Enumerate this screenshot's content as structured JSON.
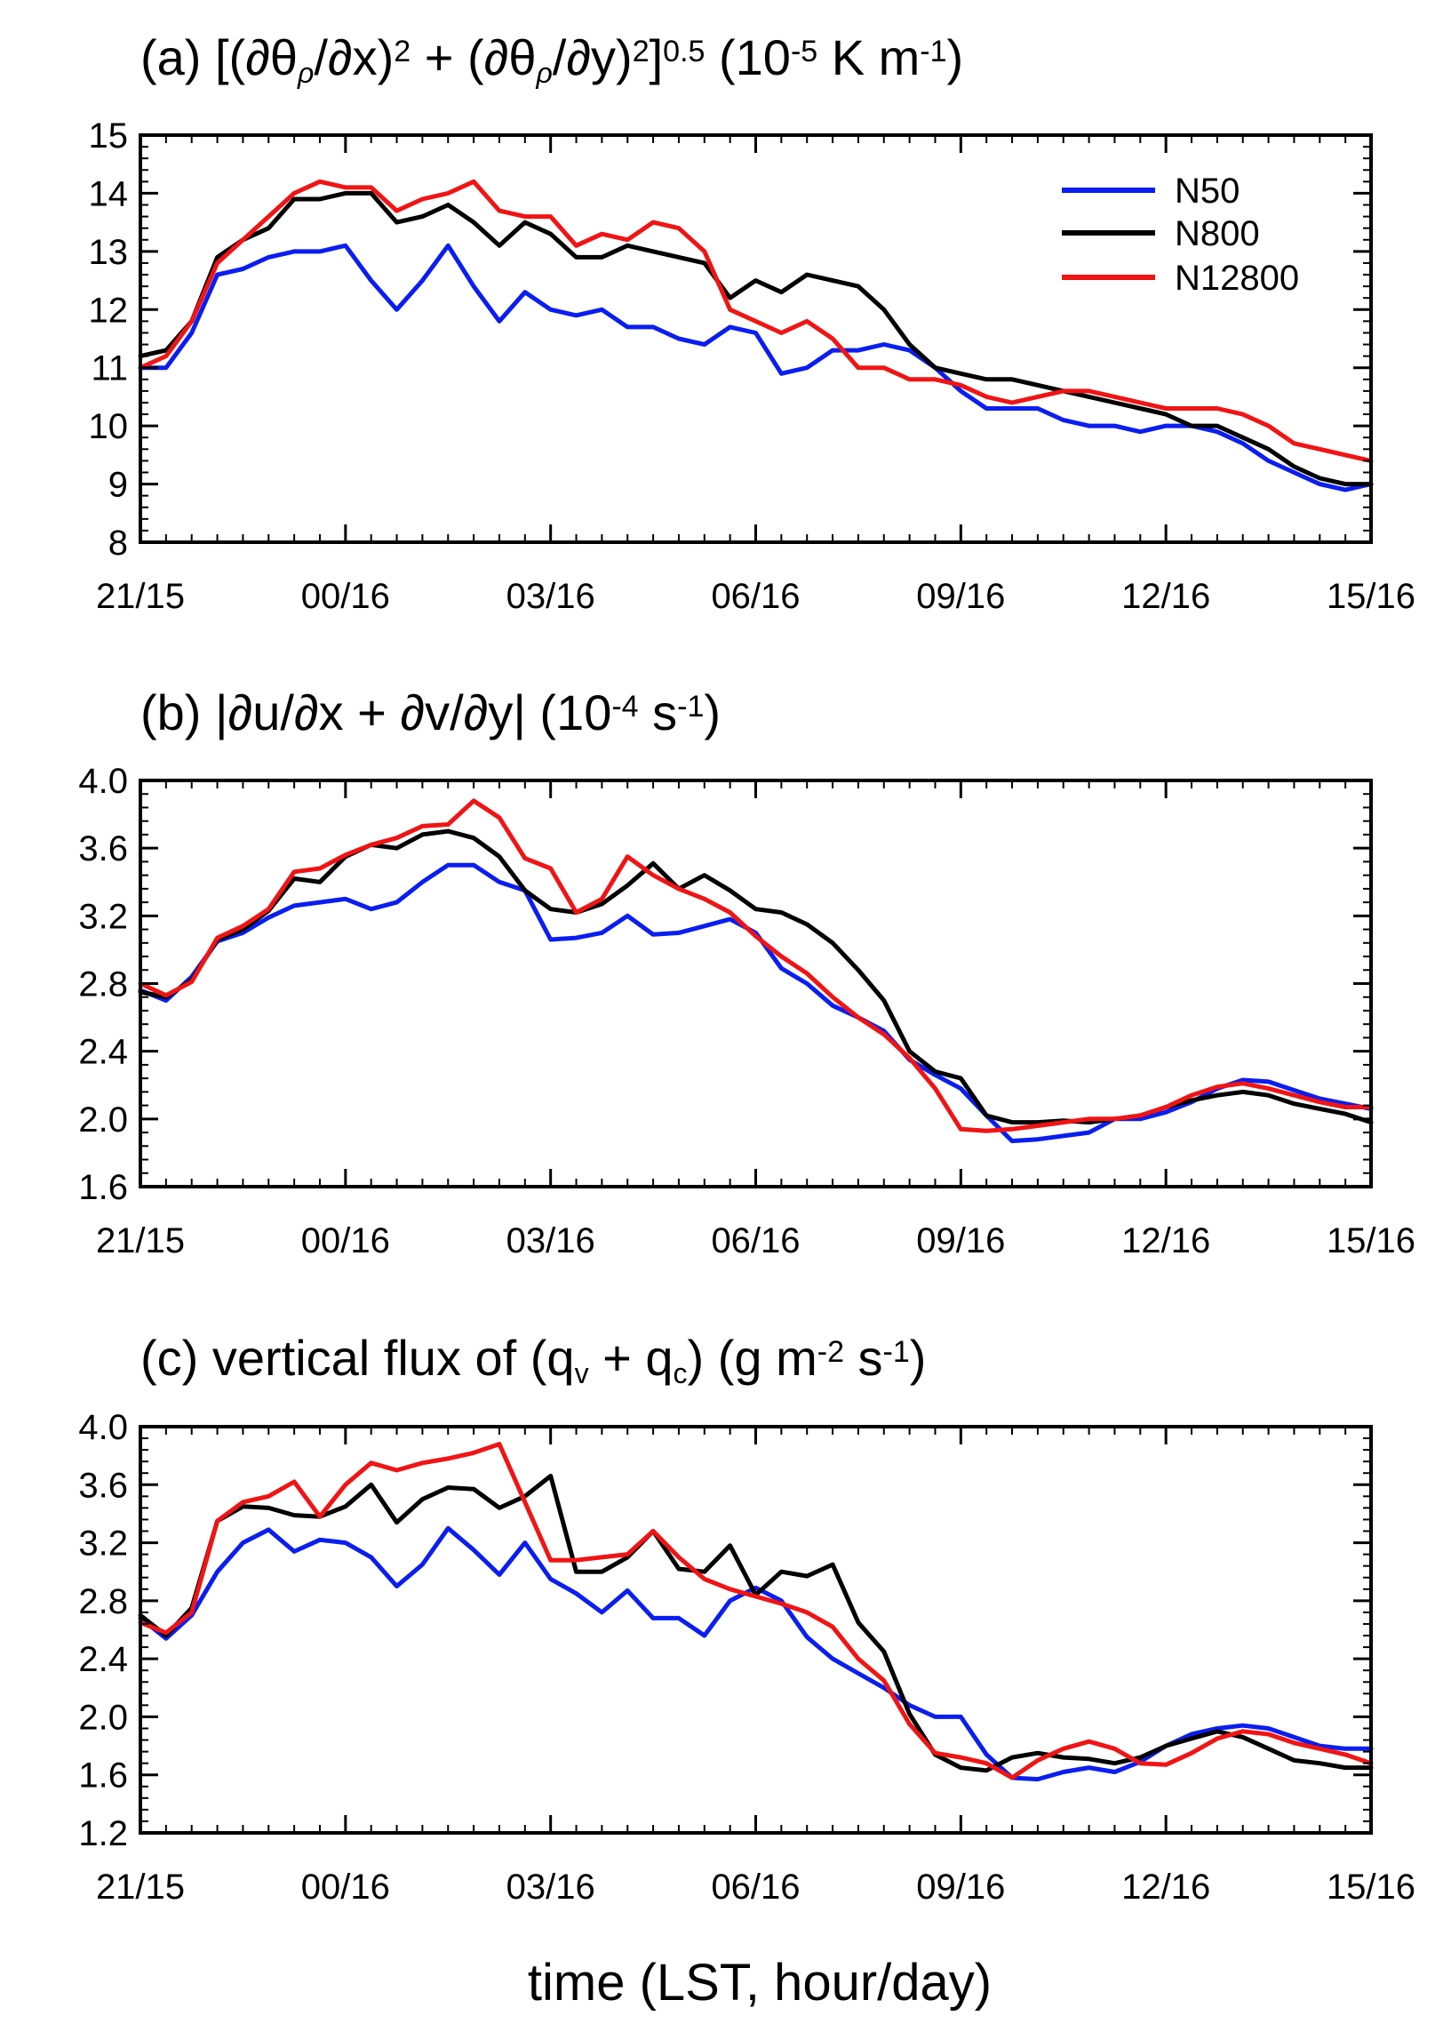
{
  "figure": {
    "xlabel": "time (LST, hour/day)"
  },
  "legend": [
    {
      "name": "N50",
      "color": "#0a1ef0"
    },
    {
      "name": "N800",
      "color": "#000000"
    },
    {
      "name": "N12800",
      "color": "#f01414"
    }
  ],
  "chart_data": [
    {
      "type": "line",
      "title": "(a) [(∂θρ/∂x)² + (∂θρ/∂y)²]^0.5 (10⁻⁵ K m⁻¹)",
      "title_parts": {
        "prefix": "(a) [(∂θ",
        "sub1": "ρ",
        "mid1": "/∂x)",
        "sup1": "2",
        "mid2": " + (∂θ",
        "sub2": "ρ",
        "mid3": "/∂y)",
        "sup2": "2",
        "mid4": "]",
        "sup3": "0.5",
        "mid5": " (10",
        "sup4": "-5",
        "mid6": " K m",
        "sup5": "-1",
        "suffix": ")"
      },
      "xlabel": "",
      "ylabel": "",
      "xlim": [
        0,
        24
      ],
      "ylim": [
        8,
        15
      ],
      "x_tick_values": [
        0,
        4,
        8,
        12,
        16,
        20,
        24
      ],
      "x_tick_labels": [
        "21/15",
        "00/16",
        "03/16",
        "06/16",
        "09/16",
        "12/16",
        "15/16"
      ],
      "y_tick_values": [
        8,
        9,
        10,
        11,
        12,
        13,
        14,
        15
      ],
      "y_tick_labels": [
        "8",
        "9",
        "10",
        "11",
        "12",
        "13",
        "14",
        "15"
      ],
      "series": [
        {
          "name": "N50",
          "x": [
            0,
            0.5,
            1,
            1.5,
            2,
            2.5,
            3,
            3.5,
            4,
            4.5,
            5,
            5.5,
            6,
            6.5,
            7,
            7.5,
            8,
            8.5,
            9,
            9.5,
            10,
            10.5,
            11,
            11.5,
            12,
            12.5,
            13,
            13.5,
            14,
            14.5,
            15,
            15.5,
            16,
            16.5,
            17,
            17.5,
            18,
            18.5,
            19,
            19.5,
            20,
            20.5,
            21,
            21.5,
            22,
            22.5,
            23,
            23.5,
            24
          ],
          "values": [
            11.0,
            11.0,
            11.6,
            12.6,
            12.7,
            12.9,
            13.0,
            13.0,
            13.1,
            12.5,
            12.0,
            12.5,
            13.1,
            12.4,
            11.8,
            12.3,
            12.0,
            11.9,
            12.0,
            11.7,
            11.7,
            11.5,
            11.4,
            11.7,
            11.6,
            10.9,
            11.0,
            11.3,
            11.3,
            11.4,
            11.3,
            11.0,
            10.6,
            10.3,
            10.3,
            10.3,
            10.1,
            10.0,
            10.0,
            9.9,
            10.0,
            10.0,
            9.9,
            9.7,
            9.4,
            9.2,
            9.0,
            8.9,
            9.0
          ]
        },
        {
          "name": "N800",
          "x": [
            0,
            0.5,
            1,
            1.5,
            2,
            2.5,
            3,
            3.5,
            4,
            4.5,
            5,
            5.5,
            6,
            6.5,
            7,
            7.5,
            8,
            8.5,
            9,
            9.5,
            10,
            10.5,
            11,
            11.5,
            12,
            12.5,
            13,
            13.5,
            14,
            14.5,
            15,
            15.5,
            16,
            16.5,
            17,
            17.5,
            18,
            18.5,
            19,
            19.5,
            20,
            20.5,
            21,
            21.5,
            22,
            22.5,
            23,
            23.5,
            24
          ],
          "values": [
            11.2,
            11.3,
            11.8,
            12.9,
            13.2,
            13.4,
            13.9,
            13.9,
            14.0,
            14.0,
            13.5,
            13.6,
            13.8,
            13.5,
            13.1,
            13.5,
            13.3,
            12.9,
            12.9,
            13.1,
            13.0,
            12.9,
            12.8,
            12.2,
            12.5,
            12.3,
            12.6,
            12.5,
            12.4,
            12.0,
            11.4,
            11.0,
            10.9,
            10.8,
            10.8,
            10.7,
            10.6,
            10.5,
            10.4,
            10.3,
            10.2,
            10.0,
            10.0,
            9.8,
            9.6,
            9.3,
            9.1,
            9.0,
            9.0
          ]
        },
        {
          "name": "N12800",
          "x": [
            0,
            0.5,
            1,
            1.5,
            2,
            2.5,
            3,
            3.5,
            4,
            4.5,
            5,
            5.5,
            6,
            6.5,
            7,
            7.5,
            8,
            8.5,
            9,
            9.5,
            10,
            10.5,
            11,
            11.5,
            12,
            12.5,
            13,
            13.5,
            14,
            14.5,
            15,
            15.5,
            16,
            16.5,
            17,
            17.5,
            18,
            18.5,
            19,
            19.5,
            20,
            20.5,
            21,
            21.5,
            22,
            22.5,
            23,
            23.5,
            24
          ],
          "values": [
            11.0,
            11.2,
            11.8,
            12.8,
            13.2,
            13.6,
            14.0,
            14.2,
            14.1,
            14.1,
            13.7,
            13.9,
            14.0,
            14.2,
            13.7,
            13.6,
            13.6,
            13.1,
            13.3,
            13.2,
            13.5,
            13.4,
            13.0,
            12.0,
            11.8,
            11.6,
            11.8,
            11.5,
            11.0,
            11.0,
            10.8,
            10.8,
            10.7,
            10.5,
            10.4,
            10.5,
            10.6,
            10.6,
            10.5,
            10.4,
            10.3,
            10.3,
            10.3,
            10.2,
            10.0,
            9.7,
            9.6,
            9.5,
            9.4
          ]
        }
      ]
    },
    {
      "type": "line",
      "title": "(b) |∂u/∂x + ∂v/∂y| (10⁻⁴ s⁻¹)",
      "title_parts": {
        "prefix": "(b) |∂u/∂x + ∂v/∂y| (10",
        "sup1": "-4",
        "mid1": " s",
        "sup2": "-1",
        "suffix": ")"
      },
      "xlabel": "",
      "ylabel": "",
      "xlim": [
        0,
        24
      ],
      "ylim": [
        1.6,
        4.0
      ],
      "x_tick_values": [
        0,
        4,
        8,
        12,
        16,
        20,
        24
      ],
      "x_tick_labels": [
        "21/15",
        "00/16",
        "03/16",
        "06/16",
        "09/16",
        "12/16",
        "15/16"
      ],
      "y_tick_values": [
        1.6,
        2.0,
        2.4,
        2.8,
        3.2,
        3.6,
        4.0
      ],
      "y_tick_labels": [
        "1.6",
        "2.0",
        "2.4",
        "2.8",
        "3.2",
        "3.6",
        "4.0"
      ],
      "series": [
        {
          "name": "N50",
          "x": [
            0,
            0.5,
            1,
            1.5,
            2,
            2.5,
            3,
            3.5,
            4,
            4.5,
            5,
            5.5,
            6,
            6.5,
            7,
            7.5,
            8,
            8.5,
            9,
            9.5,
            10,
            10.5,
            11,
            11.5,
            12,
            12.5,
            13,
            13.5,
            14,
            14.5,
            15,
            15.5,
            16,
            16.5,
            17,
            17.5,
            18,
            18.5,
            19,
            19.5,
            20,
            20.5,
            21,
            21.5,
            22,
            22.5,
            23,
            23.5,
            24
          ],
          "values": [
            2.76,
            2.7,
            2.84,
            3.05,
            3.1,
            3.19,
            3.26,
            3.28,
            3.3,
            3.24,
            3.28,
            3.4,
            3.5,
            3.5,
            3.4,
            3.35,
            3.06,
            3.07,
            3.1,
            3.2,
            3.09,
            3.1,
            3.14,
            3.18,
            3.1,
            2.89,
            2.8,
            2.67,
            2.6,
            2.52,
            2.35,
            2.26,
            2.18,
            2.02,
            1.87,
            1.88,
            1.9,
            1.92,
            2.0,
            2.0,
            2.04,
            2.1,
            2.18,
            2.23,
            2.22,
            2.17,
            2.12,
            2.09,
            2.06
          ]
        },
        {
          "name": "N800",
          "x": [
            0,
            0.5,
            1,
            1.5,
            2,
            2.5,
            3,
            3.5,
            4,
            4.5,
            5,
            5.5,
            6,
            6.5,
            7,
            7.5,
            8,
            8.5,
            9,
            9.5,
            10,
            10.5,
            11,
            11.5,
            12,
            12.5,
            13,
            13.5,
            14,
            14.5,
            15,
            15.5,
            16,
            16.5,
            17,
            17.5,
            18,
            18.5,
            19,
            19.5,
            20,
            20.5,
            21,
            21.5,
            22,
            22.5,
            23,
            23.5,
            24
          ],
          "values": [
            2.75,
            2.72,
            2.82,
            3.06,
            3.12,
            3.23,
            3.42,
            3.4,
            3.55,
            3.62,
            3.6,
            3.68,
            3.7,
            3.66,
            3.55,
            3.35,
            3.24,
            3.22,
            3.27,
            3.38,
            3.51,
            3.36,
            3.44,
            3.35,
            3.24,
            3.22,
            3.15,
            3.04,
            2.88,
            2.7,
            2.4,
            2.28,
            2.24,
            2.02,
            1.98,
            1.98,
            1.99,
            1.98,
            2.0,
            2.02,
            2.07,
            2.11,
            2.14,
            2.16,
            2.14,
            2.09,
            2.06,
            2.03,
            1.98
          ]
        },
        {
          "name": "N12800",
          "x": [
            0,
            0.5,
            1,
            1.5,
            2,
            2.5,
            3,
            3.5,
            4,
            4.5,
            5,
            5.5,
            6,
            6.5,
            7,
            7.5,
            8,
            8.5,
            9,
            9.5,
            10,
            10.5,
            11,
            11.5,
            12,
            12.5,
            13,
            13.5,
            14,
            14.5,
            15,
            15.5,
            16,
            16.5,
            17,
            17.5,
            18,
            18.5,
            19,
            19.5,
            20,
            20.5,
            21,
            21.5,
            22,
            22.5,
            23,
            23.5,
            24
          ],
          "values": [
            2.8,
            2.73,
            2.81,
            3.07,
            3.14,
            3.24,
            3.46,
            3.48,
            3.56,
            3.62,
            3.66,
            3.73,
            3.74,
            3.88,
            3.78,
            3.54,
            3.48,
            3.22,
            3.3,
            3.55,
            3.44,
            3.36,
            3.3,
            3.22,
            3.08,
            2.96,
            2.86,
            2.72,
            2.6,
            2.5,
            2.36,
            2.18,
            1.94,
            1.93,
            1.94,
            1.96,
            1.98,
            2.0,
            2.0,
            2.02,
            2.07,
            2.14,
            2.19,
            2.21,
            2.18,
            2.14,
            2.1,
            2.07,
            2.07
          ]
        }
      ]
    },
    {
      "type": "line",
      "title": "(c) vertical flux of (qv + qc) (g m⁻² s⁻¹)",
      "title_parts": {
        "prefix": "(c) vertical flux of (q",
        "sub1": "v",
        "mid1": " + q",
        "sub2": "c",
        "mid2": ") (g m",
        "sup1": "-2",
        "mid3": " s",
        "sup2": "-1",
        "suffix": ")"
      },
      "xlabel": "time (LST, hour/day)",
      "ylabel": "",
      "xlim": [
        0,
        24
      ],
      "ylim": [
        1.2,
        4.0
      ],
      "x_tick_values": [
        0,
        4,
        8,
        12,
        16,
        20,
        24
      ],
      "x_tick_labels": [
        "21/15",
        "00/16",
        "03/16",
        "06/16",
        "09/16",
        "12/16",
        "15/16"
      ],
      "y_tick_values": [
        1.2,
        1.6,
        2.0,
        2.4,
        2.8,
        3.2,
        3.6,
        4.0
      ],
      "y_tick_labels": [
        "1.2",
        "1.6",
        "2.0",
        "2.4",
        "2.8",
        "3.2",
        "3.6",
        "4.0"
      ],
      "series": [
        {
          "name": "N50",
          "x": [
            0,
            0.5,
            1,
            1.5,
            2,
            2.5,
            3,
            3.5,
            4,
            4.5,
            5,
            5.5,
            6,
            6.5,
            7,
            7.5,
            8,
            8.5,
            9,
            9.5,
            10,
            10.5,
            11,
            11.5,
            12,
            12.5,
            13,
            13.5,
            14,
            14.5,
            15,
            15.5,
            16,
            16.5,
            17,
            17.5,
            18,
            18.5,
            19,
            19.5,
            20,
            20.5,
            21,
            21.5,
            22,
            22.5,
            23,
            23.5,
            24
          ],
          "values": [
            2.68,
            2.54,
            2.7,
            3.0,
            3.2,
            3.29,
            3.14,
            3.22,
            3.2,
            3.1,
            2.9,
            3.05,
            3.3,
            3.15,
            2.98,
            3.2,
            2.95,
            2.85,
            2.72,
            2.87,
            2.68,
            2.68,
            2.56,
            2.8,
            2.89,
            2.8,
            2.55,
            2.4,
            2.3,
            2.2,
            2.08,
            2.0,
            2.0,
            1.74,
            1.58,
            1.57,
            1.62,
            1.65,
            1.62,
            1.69,
            1.8,
            1.88,
            1.92,
            1.94,
            1.92,
            1.86,
            1.8,
            1.78,
            1.78
          ]
        },
        {
          "name": "N800",
          "x": [
            0,
            0.5,
            1,
            1.5,
            2,
            2.5,
            3,
            3.5,
            4,
            4.5,
            5,
            5.5,
            6,
            6.5,
            7,
            7.5,
            8,
            8.5,
            9,
            9.5,
            10,
            10.5,
            11,
            11.5,
            12,
            12.5,
            13,
            13.5,
            14,
            14.5,
            15,
            15.5,
            16,
            16.5,
            17,
            17.5,
            18,
            18.5,
            19,
            19.5,
            20,
            20.5,
            21,
            21.5,
            22,
            22.5,
            23,
            23.5,
            24
          ],
          "values": [
            2.7,
            2.56,
            2.75,
            3.35,
            3.45,
            3.44,
            3.39,
            3.38,
            3.45,
            3.6,
            3.34,
            3.5,
            3.58,
            3.57,
            3.44,
            3.52,
            3.66,
            3.0,
            3.0,
            3.1,
            3.28,
            3.02,
            3.0,
            3.18,
            2.84,
            3.0,
            2.97,
            3.05,
            2.65,
            2.45,
            2.02,
            1.74,
            1.65,
            1.63,
            1.72,
            1.75,
            1.72,
            1.71,
            1.68,
            1.72,
            1.8,
            1.85,
            1.9,
            1.86,
            1.78,
            1.7,
            1.68,
            1.65,
            1.65
          ]
        },
        {
          "name": "N12800",
          "x": [
            0,
            0.5,
            1,
            1.5,
            2,
            2.5,
            3,
            3.5,
            4,
            4.5,
            5,
            5.5,
            6,
            6.5,
            7,
            7.5,
            8,
            8.5,
            9,
            9.5,
            10,
            10.5,
            11,
            11.5,
            12,
            12.5,
            13,
            13.5,
            14,
            14.5,
            15,
            15.5,
            16,
            16.5,
            17,
            17.5,
            18,
            18.5,
            19,
            19.5,
            20,
            20.5,
            21,
            21.5,
            22,
            22.5,
            23,
            23.5,
            24
          ],
          "values": [
            2.65,
            2.58,
            2.72,
            3.35,
            3.48,
            3.52,
            3.62,
            3.38,
            3.6,
            3.75,
            3.7,
            3.75,
            3.78,
            3.82,
            3.88,
            3.48,
            3.08,
            3.08,
            3.1,
            3.12,
            3.28,
            3.1,
            2.95,
            2.88,
            2.83,
            2.78,
            2.72,
            2.62,
            2.4,
            2.25,
            1.95,
            1.75,
            1.72,
            1.68,
            1.58,
            1.7,
            1.78,
            1.83,
            1.78,
            1.68,
            1.67,
            1.75,
            1.85,
            1.9,
            1.88,
            1.82,
            1.78,
            1.74,
            1.68
          ]
        }
      ]
    }
  ]
}
